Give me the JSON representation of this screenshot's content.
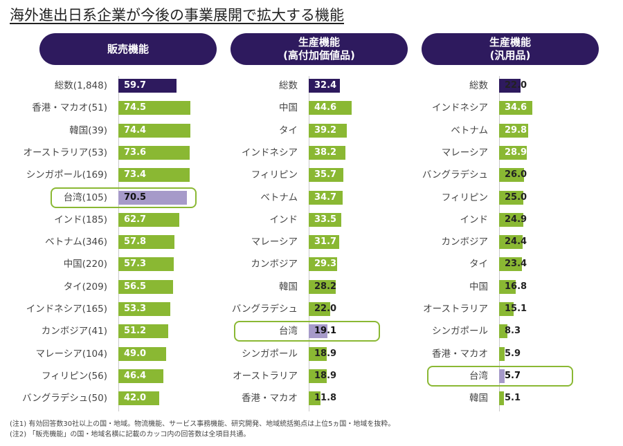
{
  "title": "海外進出日系企業が今後の事業展開で拡大する機能",
  "colors": {
    "header": "#2e1a5e",
    "total": "#2e1a5e",
    "bar": "#8ab833",
    "highlight": "#a69ac9",
    "outline": "#8ab833"
  },
  "chart_data": [
    {
      "type": "bar",
      "orientation": "horizontal",
      "title": "販売機能",
      "title_lines": [
        "販売機能"
      ],
      "highlight": "台湾(105)",
      "categories": [
        "総数(1,848)",
        "香港・マカオ(51)",
        "韓国(39)",
        "オーストラリア(53)",
        "シンガポール(169)",
        "台湾(105)",
        "インド(185)",
        "ベトナム(346)",
        "中国(220)",
        "タイ(209)",
        "インドネシア(165)",
        "カンボジア(41)",
        "マレーシア(104)",
        "フィリピン(56)",
        "バングラデシュ(50)"
      ],
      "values": [
        59.7,
        74.5,
        74.4,
        73.6,
        73.4,
        70.5,
        62.7,
        57.8,
        57.3,
        56.5,
        53.3,
        51.2,
        49.0,
        46.4,
        42.0
      ],
      "value_labels": [
        "59.7",
        "74.5",
        "74.4",
        "73.6",
        "73.4",
        "70.5",
        "62.7",
        "57.8",
        "57.3",
        "56.5",
        "53.3",
        "51.2",
        "49.0",
        "46.4",
        "42.0"
      ],
      "xlim": [
        0,
        80
      ]
    },
    {
      "type": "bar",
      "orientation": "horizontal",
      "title": "生産機能 (高付加価値品)",
      "title_lines": [
        "生産機能",
        "(高付加価値品)"
      ],
      "highlight": "台湾",
      "categories": [
        "総数",
        "中国",
        "タイ",
        "インドネシア",
        "フィリピン",
        "ベトナム",
        "インド",
        "マレーシア",
        "カンボジア",
        "韓国",
        "バングラデシュ",
        "台湾",
        "シンガポール",
        "オーストラリア",
        "香港・マカオ"
      ],
      "values": [
        32.4,
        44.6,
        39.2,
        38.2,
        35.7,
        34.7,
        33.5,
        31.7,
        29.3,
        28.2,
        22.0,
        19.1,
        18.9,
        18.9,
        11.8
      ],
      "value_labels": [
        "32.4",
        "44.6",
        "39.2",
        "38.2",
        "35.7",
        "34.7",
        "33.5",
        "31.7",
        "29.3",
        "28.2",
        "22.0",
        "19.1",
        "18.9",
        "18.9",
        "11.8"
      ],
      "xlim": [
        0,
        50
      ]
    },
    {
      "type": "bar",
      "orientation": "horizontal",
      "title": "生産機能 (汎用品)",
      "title_lines": [
        "生産機能",
        "(汎用品)"
      ],
      "highlight": "台湾",
      "categories": [
        "総数",
        "インドネシア",
        "ベトナム",
        "マレーシア",
        "バングラデシュ",
        "フィリピン",
        "インド",
        "カンボジア",
        "タイ",
        "中国",
        "オーストラリア",
        "シンガポール",
        "香港・マカオ",
        "台湾",
        "韓国"
      ],
      "values": [
        22.0,
        34.6,
        29.8,
        28.9,
        26.0,
        25.0,
        24.9,
        24.4,
        23.4,
        16.8,
        15.1,
        8.3,
        5.9,
        5.7,
        5.1
      ],
      "value_labels": [
        "22.0",
        "34.6",
        "29.8",
        "28.9",
        "26.0",
        "25.0",
        "24.9",
        "24.4",
        "23.4",
        "16.8",
        "15.1",
        "8.3",
        "5.9",
        "5.7",
        "5.1"
      ],
      "xlim": [
        0,
        40
      ]
    }
  ],
  "notes": [
    "(注1) 有効回答数30社以上の国・地域。物流機能、サービス事務機能、研究開発、地域統括拠点は上位5ヵ国・地域を抜粋。",
    "(注2) 「販売機能」の国・地域名横に記載のカッコ内の回答数は全項目共通。"
  ]
}
